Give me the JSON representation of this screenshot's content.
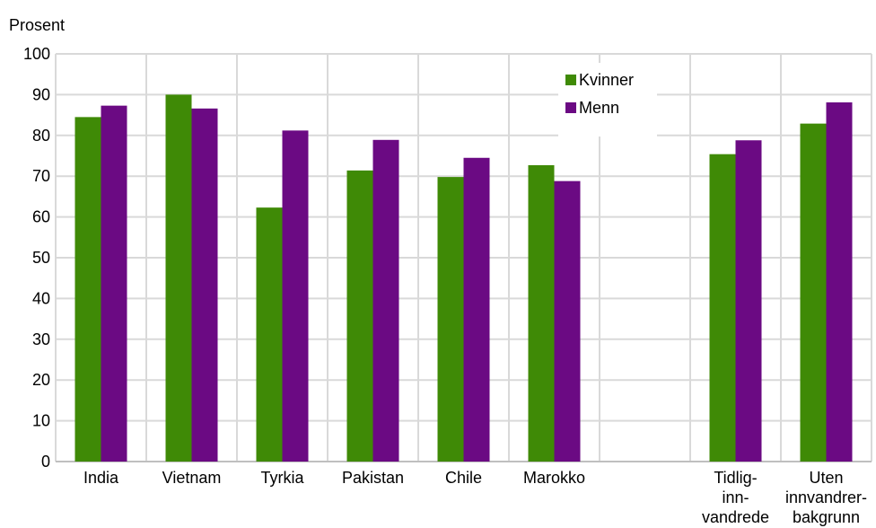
{
  "chart_data": {
    "type": "bar",
    "ylabel": "Prosent",
    "ylim": [
      0,
      100
    ],
    "yticks": [
      0,
      10,
      20,
      30,
      40,
      50,
      60,
      70,
      80,
      90,
      100
    ],
    "grid": true,
    "legend_position": "top-right",
    "categories": [
      [
        "India"
      ],
      [
        "Vietnam"
      ],
      [
        "Tyrkia"
      ],
      [
        "Pakistan"
      ],
      [
        "Chile"
      ],
      [
        "Marokko"
      ],
      [
        ""
      ],
      [
        "Tidlig-",
        "inn-",
        "vandrede"
      ],
      [
        "Uten",
        "innvandrer-",
        "bakgrunn"
      ]
    ],
    "series": [
      {
        "name": "Kvinner",
        "color": "#3f8a06",
        "values": [
          84.5,
          90.0,
          62.3,
          71.4,
          69.8,
          72.7,
          null,
          75.4,
          82.9
        ]
      },
      {
        "name": "Menn",
        "color": "#6b0a83",
        "values": [
          87.3,
          86.6,
          81.2,
          78.9,
          74.5,
          68.8,
          null,
          78.8,
          88.1
        ]
      }
    ]
  }
}
